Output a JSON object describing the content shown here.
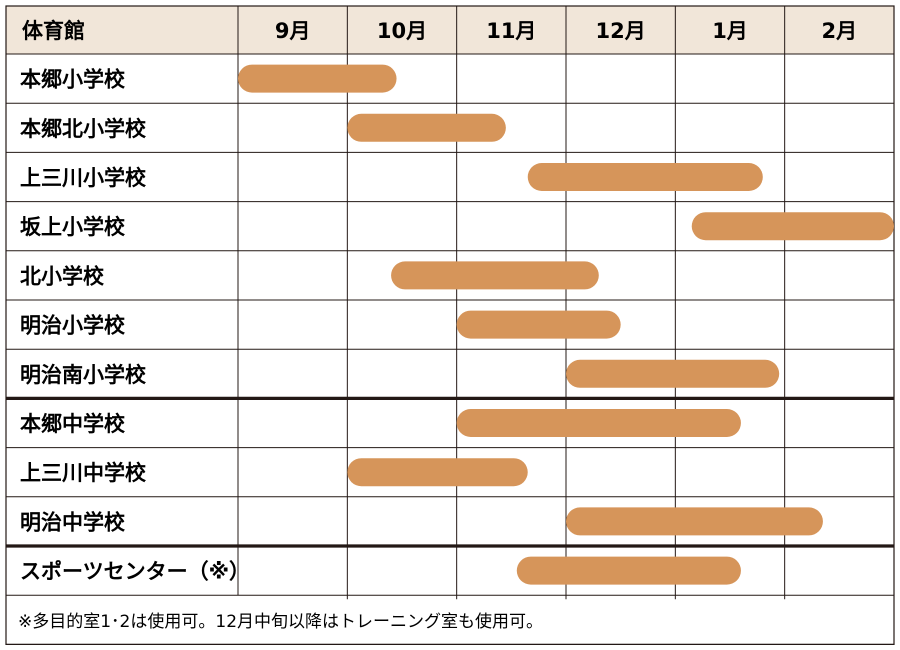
{
  "chart_data": {
    "type": "gantt",
    "corner_header": "体育館",
    "months": [
      "9月",
      "10月",
      "11月",
      "12月",
      "1月",
      "2月"
    ],
    "month_start_index": 0,
    "rows": [
      {
        "label": "本郷小学校",
        "start": 0.0,
        "end": 1.45,
        "group": 0
      },
      {
        "label": "本郷北小学校",
        "start": 1.0,
        "end": 2.45,
        "group": 0
      },
      {
        "label": "上三川小学校",
        "start": 2.65,
        "end": 4.8,
        "group": 0
      },
      {
        "label": "坂上小学校",
        "start": 4.15,
        "end": 6.0,
        "group": 0
      },
      {
        "label": "北小学校",
        "start": 1.4,
        "end": 3.3,
        "group": 0
      },
      {
        "label": "明治小学校",
        "start": 2.0,
        "end": 3.5,
        "group": 0
      },
      {
        "label": "明治南小学校",
        "start": 3.0,
        "end": 4.95,
        "group": 0
      },
      {
        "label": "本郷中学校",
        "start": 2.0,
        "end": 4.6,
        "group": 1
      },
      {
        "label": "上三川中学校",
        "start": 1.0,
        "end": 2.65,
        "group": 1
      },
      {
        "label": "明治中学校",
        "start": 3.0,
        "end": 5.35,
        "group": 1
      },
      {
        "label": "スポーツセンター（※）",
        "start": 2.55,
        "end": 4.6,
        "group": 2
      }
    ],
    "note": "※多目的室1･2は使用可。12月中旬以降はトレーニング室も使用可。"
  },
  "colors": {
    "header_bg": "#f1e6d9",
    "bar": "#d6955a",
    "line": "#231815"
  }
}
